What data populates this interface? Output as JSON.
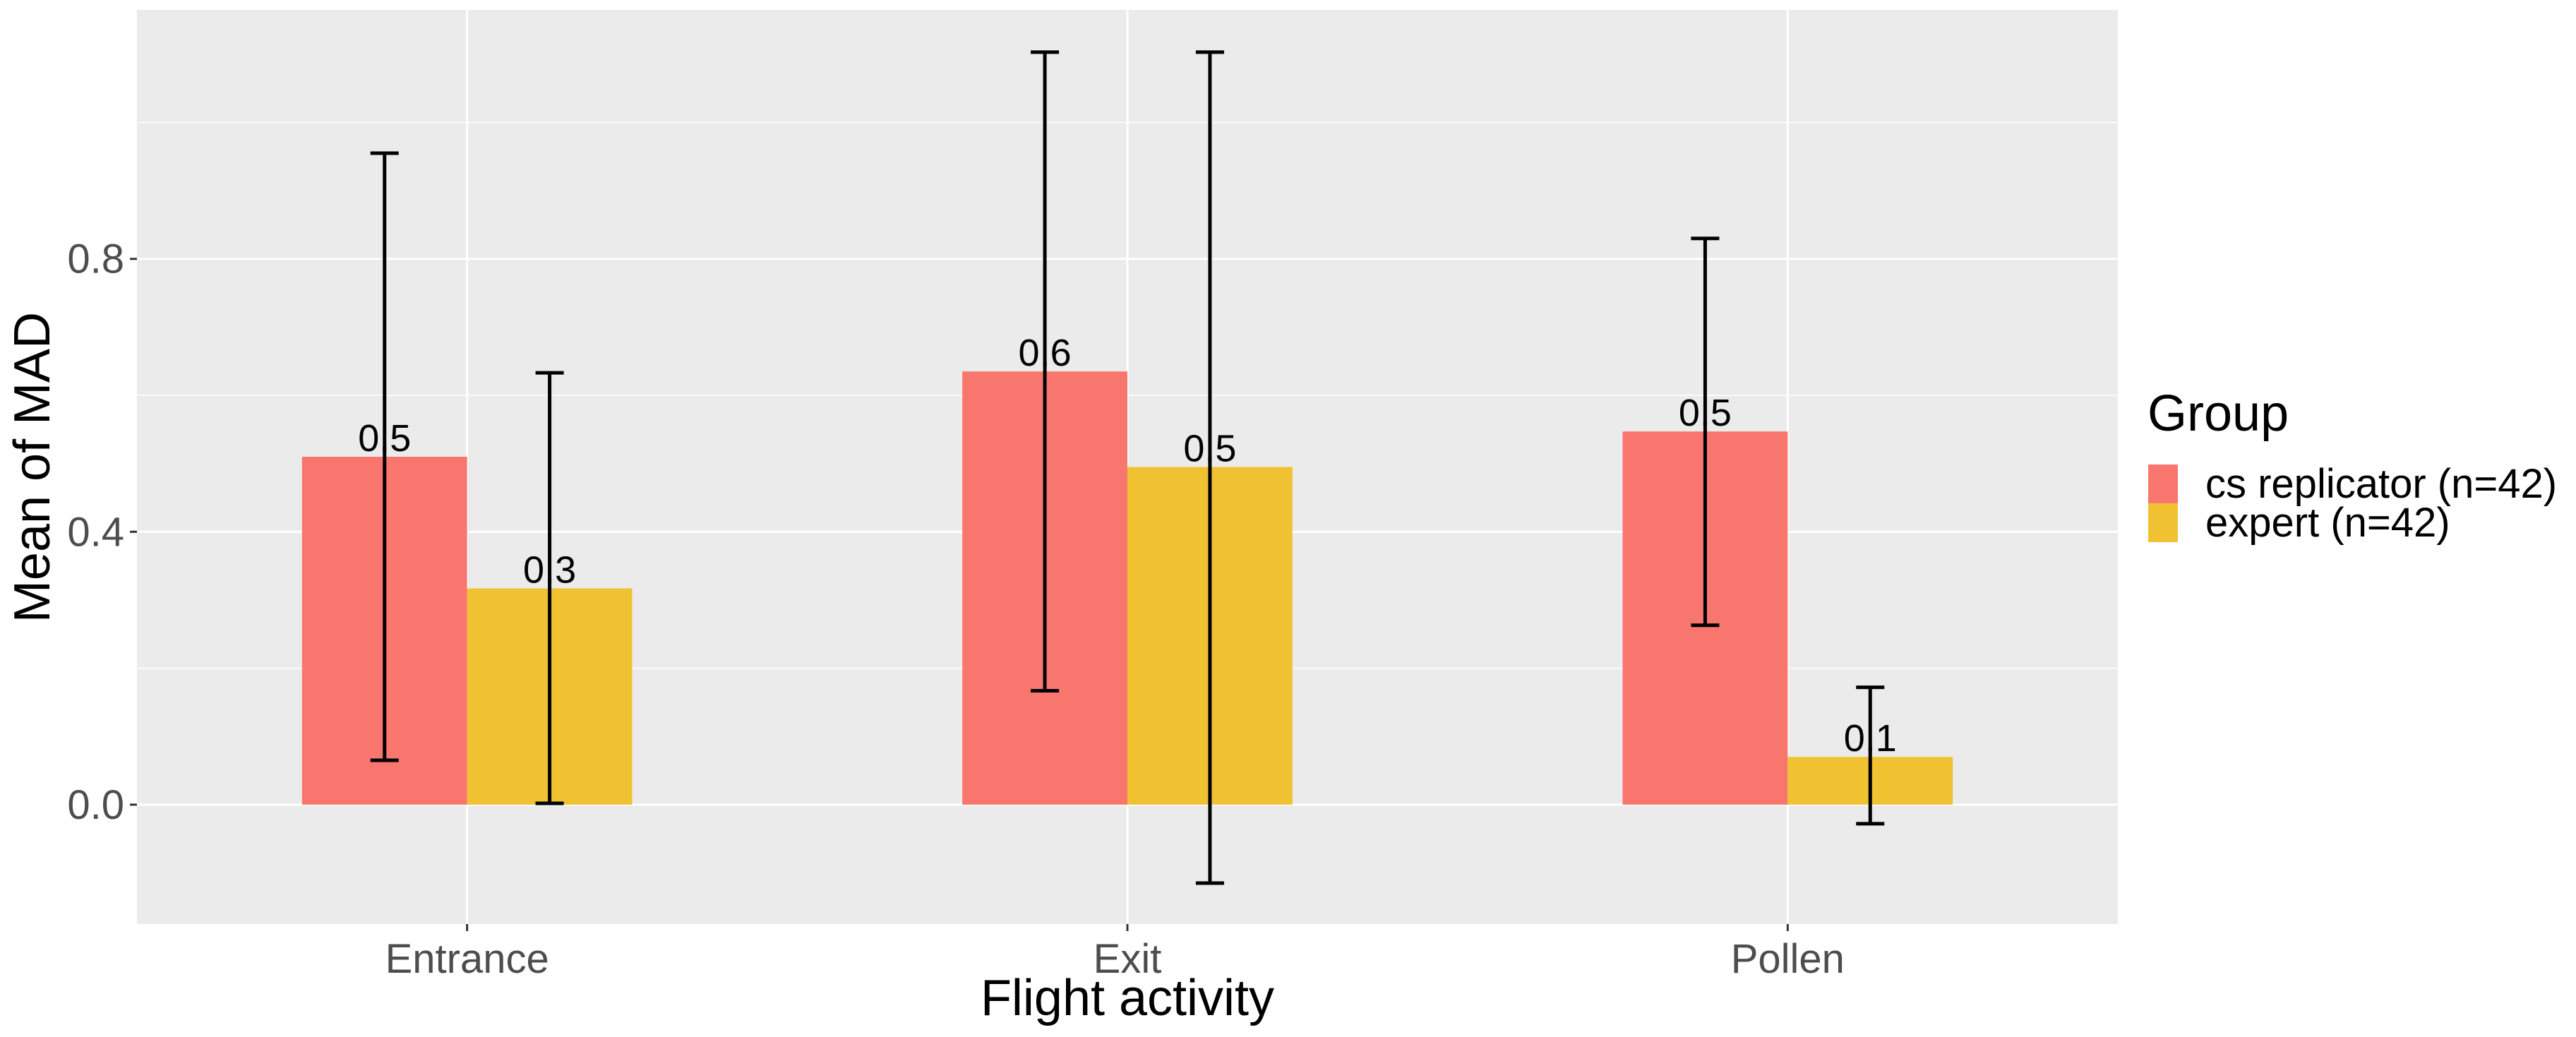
{
  "chart_data": {
    "type": "bar",
    "title": "",
    "xlabel": "Flight activity",
    "ylabel": "Mean of MAD",
    "categories": [
      "Entrance",
      "Exit",
      "Pollen"
    ],
    "series": [
      {
        "name": "cs replicator (n=42)",
        "color": "#F8766D",
        "values": [
          0.51,
          0.635,
          0.547
        ],
        "labels": [
          "0.5",
          "0.6",
          "0.5"
        ],
        "error_low": [
          0.065,
          0.167,
          0.263
        ],
        "error_high": [
          0.955,
          1.103,
          0.83
        ]
      },
      {
        "name": "expert (n=42)",
        "color": "#F0C232",
        "values": [
          0.317,
          0.495,
          0.07
        ],
        "labels": [
          "0.3",
          "0.5",
          "0.1"
        ],
        "error_low": [
          0.002,
          -0.115,
          -0.028
        ],
        "error_high": [
          0.633,
          1.103,
          0.172
        ]
      }
    ],
    "ylim": [
      -0.175,
      1.165
    ],
    "yticks": [
      0.0,
      0.4,
      0.8
    ],
    "ytick_labels": [
      "0.0",
      "0.4",
      "0.8"
    ],
    "grid": true,
    "legend": {
      "title": "Group",
      "position": "right"
    },
    "colors": {
      "panel": "#EBEBEB",
      "grid": "#FFFFFF",
      "axis_text": "#4D4D4D",
      "text": "#000000"
    }
  }
}
